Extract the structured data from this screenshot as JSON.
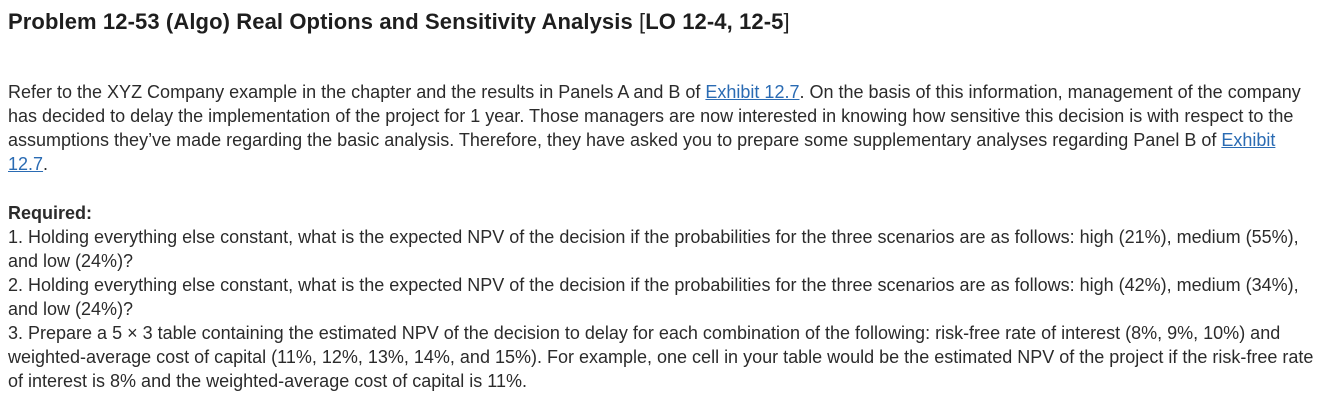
{
  "title": {
    "text": "Problem 12-53 (Algo) Real Options and Sensitivity Analysis ",
    "bracket_open": "[",
    "lo": "LO 12-4, 12-5",
    "bracket_close": "]"
  },
  "intro": {
    "part1": "Refer to the XYZ Company example in the chapter and the results in Panels A and B of ",
    "link1": "Exhibit 12.7",
    "part2": ". On the basis of this information, management of the company has decided to delay the implementation of the project for 1 year. Those managers are now interested in knowing how sensitive this decision is with respect to the assumptions they’ve made regarding the basic analysis. Therefore, they have asked you to prepare some supplementary analyses regarding Panel B of ",
    "link2": "Exhibit 12.7",
    "part3": "."
  },
  "required": {
    "label": "Required:",
    "items": [
      "1. Holding everything else constant, what is the expected NPV of the decision if the probabilities for the three scenarios are as follows: high (21%), medium (55%), and low (24%)?",
      "2. Holding everything else constant, what is the expected NPV of the decision if the probabilities for the three scenarios are as follows: high (42%), medium (34%), and low (24%)?",
      "3. Prepare a 5 × 3 table containing the estimated NPV of the decision to delay for each combination of the following: risk-free rate of interest (8%, 9%, 10%) and weighted-average cost of capital (11%, 12%, 13%, 14%, and 15%). For example, one cell in your table would be the estimated NPV of the project if the risk-free rate of interest is 8% and the weighted-average cost of capital is 11%."
    ]
  },
  "colors": {
    "text": "#2b2b2b",
    "link": "#2a6bb3"
  }
}
